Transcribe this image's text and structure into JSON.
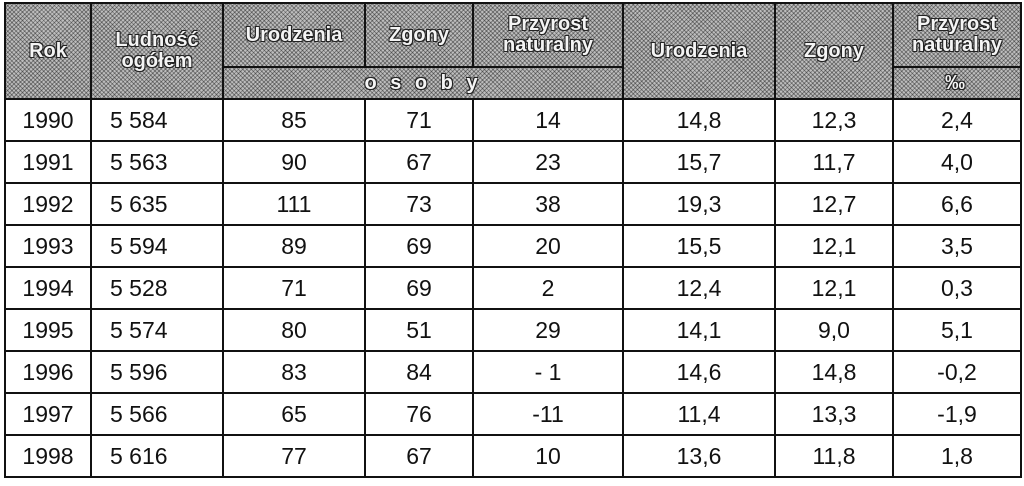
{
  "headers": {
    "rok": "Rok",
    "ludnosc": [
      "Ludność",
      "ogółem"
    ],
    "urodzenia": "Urodzenia",
    "zgony": "Zgony",
    "przyrost": [
      "Przyrost",
      "naturalny"
    ],
    "urodzenia2": "Urodzenia",
    "zgony2": "Zgony",
    "przyrost2": [
      "Przyrost",
      "naturalny"
    ],
    "unit_persons": "o s o b y",
    "unit_permille": "‰"
  },
  "rows": [
    [
      "1990",
      "5 584",
      "85",
      "71",
      "14",
      "14,8",
      "12,3",
      "2,4"
    ],
    [
      "1991",
      "5 563",
      "90",
      "67",
      "23",
      "15,7",
      "11,7",
      "4,0"
    ],
    [
      "1992",
      "5 635",
      "111",
      "73",
      "38",
      "19,3",
      "12,7",
      "6,6"
    ],
    [
      "1993",
      "5 594",
      "89",
      "69",
      "20",
      "15,5",
      "12,1",
      "3,5"
    ],
    [
      "1994",
      "5 528",
      "71",
      "69",
      "2",
      "12,4",
      "12,1",
      "0,3"
    ],
    [
      "1995",
      "5 574",
      "80",
      "51",
      "29",
      "14,1",
      "9,0",
      "5,1"
    ],
    [
      "1996",
      "5 596",
      "83",
      "84",
      "- 1",
      "14,6",
      "14,8",
      "-0,2"
    ],
    [
      "1997",
      "5 566",
      "65",
      "76",
      "-11",
      "11,4",
      "13,3",
      "-1,9"
    ],
    [
      "1998",
      "5 616",
      "77",
      "67",
      "10",
      "13,6",
      "11,8",
      "1,8"
    ]
  ]
}
